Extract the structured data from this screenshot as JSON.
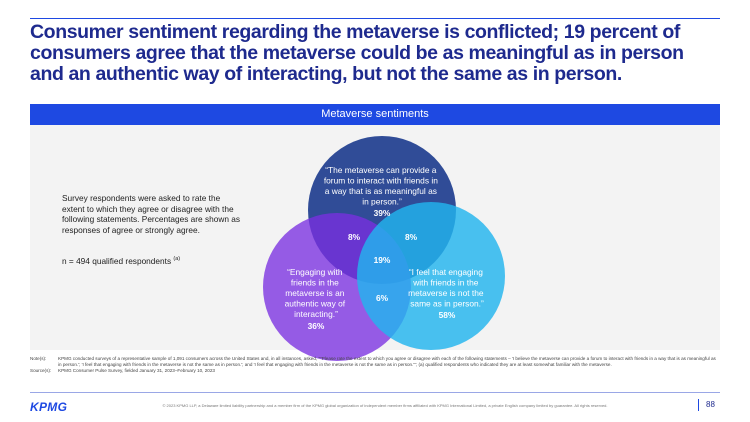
{
  "title": "Consumer sentiment regarding the metaverse is conflicted; 19 percent of consumers agree that the metaverse could be as meaningful as in person and an authentic way of interacting, but not the same as in person.",
  "banner": "Metaverse sentiments",
  "description": "Survey respondents were asked to rate the extent to which they agree or disagree with the following statements. Percentages are shown as responses of agree or strongly agree.",
  "n_label": "n = 494 qualified respondents",
  "n_sup": "(a)",
  "venn": {
    "circles": [
      {
        "text": [
          "“The metaverse can provide a",
          "forum to interact with friends in",
          "a way that is as meaningful as",
          "in person.”"
        ],
        "value": "39%",
        "color": "#1F3E8F"
      },
      {
        "text": [
          "“Engaging with",
          "friends in the",
          "metaverse is an",
          "authentic way of",
          "interacting.”"
        ],
        "value": "36%",
        "color": "#7A2FE0"
      },
      {
        "text": [
          "“I feel that engaging",
          "with friends in the",
          "metaverse is not the",
          "same as in person.”"
        ],
        "value": "58%",
        "color": "#22B5EE"
      }
    ],
    "overlaps": {
      "top_left": "8%",
      "top_right": "8%",
      "bottom": "6%",
      "center": "19%"
    }
  },
  "notes": {
    "label": "Note(s):",
    "text": "KPMG conducted surveys of a representative sample of 1,091 consumers across the United States and, in all instances, asked, \"\"Please rate the extent to which you agree or disagree with each of the following statements – 'I believe the metaverse can provide a forum to interact with friends in a way that is as meaningful as in person.'; 'I feel that engaging with friends in the metaverse is not the same as in person.'; and 'I feel that engaging with friends in the metaverse is not the same as in person.'\"; (a) qualified respondents who indicated they are at least somewhat familiar with the metaverse.",
    "source_label": "Source(s):",
    "source_text": "KPMG Consumer Pulse Survey, fielded January 31, 2023–February 10, 2023"
  },
  "footer": {
    "logo": "KPMG",
    "copyright": "© 2023 KPMG LLP, a Delaware limited liability partnership and a member firm of the KPMG global organization of independent member firms affiliated with KPMG International Limited, a private English company limited by guarantee. All rights reserved.",
    "page": "88"
  }
}
